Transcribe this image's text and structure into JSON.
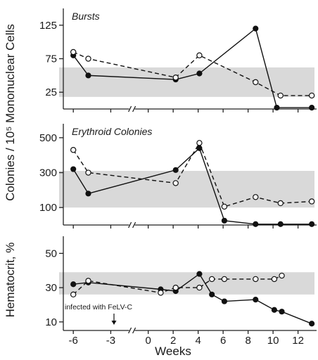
{
  "chart_data": {
    "type": "line",
    "xlabel": "Weeks",
    "shared_ylabel": "Colonies / 10⁵ Mononuclear Cells",
    "x_ticks": [
      -6,
      -3,
      0,
      2,
      4,
      6,
      8,
      10,
      12
    ],
    "xlim": [
      -6.8,
      13.6
    ],
    "annotation": "infected with FeLV-C",
    "annotation_x": 0,
    "panels": [
      {
        "id": "bursts",
        "title": "Bursts",
        "ylim": [
          0,
          150
        ],
        "y_ticks": [
          25,
          75,
          125
        ],
        "normal_band": [
          18,
          62
        ],
        "series": [
          {
            "style": "filled-solid",
            "x": [
              -6,
              -4.8,
              2.2,
              4.1,
              8.6,
              10.3,
              13.1
            ],
            "y": [
              80,
              50,
              44,
              53,
              120,
              2,
              2
            ]
          },
          {
            "style": "open-dashed",
            "x": [
              -6,
              -4.8,
              2.2,
              4.1,
              8.6,
              10.6,
              13.1
            ],
            "y": [
              85,
              75,
              47,
              80,
              40,
              20,
              20
            ]
          }
        ]
      },
      {
        "id": "erythroid",
        "title": "Erythroid Colonies",
        "ylim": [
          0,
          580
        ],
        "y_ticks": [
          100,
          300,
          500
        ],
        "normal_band": [
          100,
          310
        ],
        "series": [
          {
            "style": "filled-solid",
            "x": [
              -6,
              -4.8,
              2.2,
              4.1,
              6.1,
              8.6,
              10.6,
              13.1
            ],
            "y": [
              320,
              180,
              315,
              440,
              25,
              5,
              5,
              5
            ]
          },
          {
            "style": "open-dashed",
            "x": [
              -6,
              -4.8,
              2.2,
              4.1,
              6.1,
              8.6,
              10.6,
              13.1
            ],
            "y": [
              430,
              300,
              240,
              470,
              105,
              160,
              125,
              135
            ]
          }
        ]
      },
      {
        "id": "hematocrit",
        "title": "",
        "ylabel": "Hematocrit, %",
        "ylim": [
          5,
          60
        ],
        "y_ticks": [
          10,
          30,
          50
        ],
        "normal_band": [
          26,
          39
        ],
        "series": [
          {
            "style": "filled-solid",
            "x": [
              -6,
              -4.8,
              1,
              2.2,
              4.1,
              5.1,
              6.1,
              8.6,
              10.1,
              10.7,
              13.1
            ],
            "y": [
              32,
              33,
              29,
              28,
              38,
              26,
              22,
              23,
              17,
              16,
              9
            ]
          },
          {
            "style": "open-dashed",
            "x": [
              -6,
              -4.8,
              1,
              2.2,
              4.1,
              5.1,
              6.1,
              8.6,
              10.1,
              10.7
            ],
            "y": [
              26,
              34,
              27,
              30,
              30,
              35,
              35,
              35,
              35,
              37
            ]
          }
        ]
      }
    ]
  }
}
